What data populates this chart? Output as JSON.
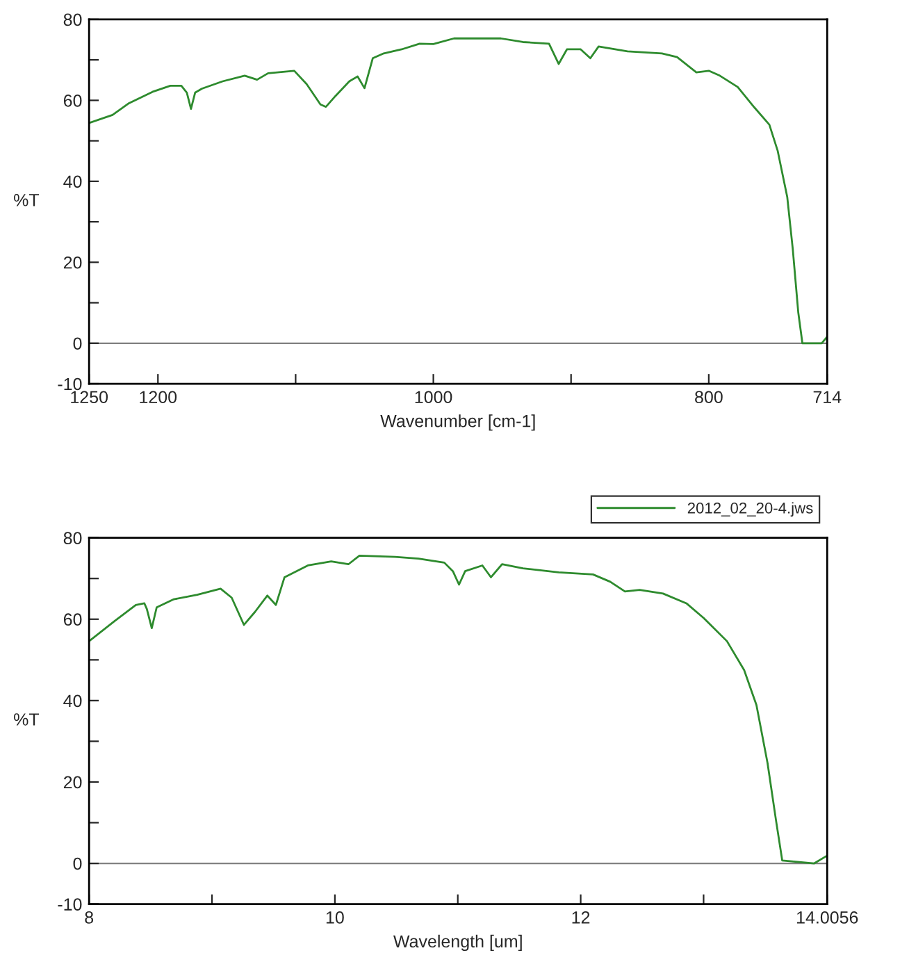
{
  "chart_data": [
    {
      "type": "line",
      "xlabel": "Wavenumber [cm-1]",
      "ylabel": "%T",
      "xlim": [
        1250,
        714
      ],
      "ylim": [
        -10,
        80
      ],
      "xticks": [
        1250,
        1200,
        {
          "value": 1100,
          "label": null
        },
        1000,
        {
          "value": 900,
          "label": null
        },
        800,
        714
      ],
      "yticks": [
        -10,
        0,
        {
          "value": 10,
          "label": null
        },
        20,
        {
          "value": 30,
          "label": null
        },
        40,
        {
          "value": 50,
          "label": null
        },
        60,
        {
          "value": 70,
          "label": null
        },
        80
      ],
      "grid": false,
      "legend": false,
      "ref_lines": [
        {
          "axis": "y",
          "value": 0,
          "color": "#808080"
        }
      ],
      "series": [
        {
          "color": "#2e8b2e",
          "x": [
            1250,
            1233,
            1221,
            1204,
            1191,
            1183,
            1179,
            1176,
            1173,
            1168,
            1153,
            1137,
            1128,
            1120,
            1101,
            1092,
            1082,
            1078,
            1071,
            1061,
            1055,
            1050,
            1044,
            1036,
            1023,
            1010,
            1000,
            985,
            968,
            951,
            935,
            916,
            909,
            903,
            893,
            886,
            880,
            859,
            834,
            823,
            809,
            800,
            792,
            779,
            767,
            756,
            750,
            743,
            739,
            735,
            732,
            718,
            714
          ],
          "values": [
            54.4,
            56.4,
            59.3,
            62.1,
            63.6,
            63.6,
            61.9,
            57.9,
            61.9,
            62.9,
            64.7,
            66.1,
            65.1,
            66.7,
            67.3,
            64,
            59,
            58.4,
            61.1,
            64.7,
            65.9,
            63,
            70.4,
            71.6,
            72.6,
            74,
            73.9,
            75.3,
            75.3,
            75.3,
            74.4,
            74,
            69,
            72.6,
            72.6,
            70.4,
            73.3,
            72.1,
            71.6,
            70.7,
            66.9,
            67.3,
            66.1,
            63.3,
            58.3,
            54,
            47.6,
            36.1,
            23.3,
            7.6,
            0,
            0,
            1.6
          ]
        }
      ]
    },
    {
      "type": "line",
      "xlabel": "Wavelength [um]",
      "ylabel": "%T",
      "xlim": [
        8,
        14.0056
      ],
      "ylim": [
        -10,
        80
      ],
      "xticks": [
        8,
        {
          "value": 9,
          "label": null
        },
        10,
        {
          "value": 11,
          "label": null
        },
        12,
        {
          "value": 13,
          "label": null
        },
        14.0056
      ],
      "yticks": [
        -10,
        0,
        {
          "value": 10,
          "label": null
        },
        20,
        {
          "value": 30,
          "label": null
        },
        40,
        {
          "value": 50,
          "label": null
        },
        60,
        {
          "value": 70,
          "label": null
        },
        80
      ],
      "grid": false,
      "legend": "top right",
      "ref_lines": [
        {
          "axis": "y",
          "value": 0,
          "color": "#808080"
        }
      ],
      "series": [
        {
          "name": "2012_02_20-4.jws",
          "color": "#2e8b2e",
          "x": [
            8,
            8.21,
            8.38,
            8.45,
            8.47,
            8.51,
            8.55,
            8.69,
            8.88,
            9.07,
            9.16,
            9.26,
            9.35,
            9.45,
            9.52,
            9.59,
            9.78,
            9.97,
            10.11,
            10.2,
            10.49,
            10.68,
            10.89,
            10.96,
            11.01,
            11.06,
            11.2,
            11.27,
            11.36,
            11.53,
            11.82,
            12.1,
            12.24,
            12.36,
            12.48,
            12.67,
            12.86,
            13,
            13.19,
            13.33,
            13.43,
            13.52,
            13.59,
            13.64,
            13.9,
            14.0056
          ],
          "values": [
            54.6,
            59.6,
            63.5,
            63.9,
            62.5,
            57.8,
            62.9,
            64.9,
            66,
            67.5,
            65.3,
            58.6,
            61.8,
            65.8,
            63.5,
            70.3,
            73.2,
            74.2,
            73.5,
            75.6,
            75.3,
            74.9,
            73.9,
            71.8,
            68.5,
            71.8,
            73.2,
            70.3,
            73.5,
            72.5,
            71.5,
            71,
            69.2,
            66.8,
            67.2,
            66.3,
            63.9,
            60.3,
            54.6,
            47.5,
            38.9,
            24.7,
            10.4,
            0.7,
            0,
            1.9
          ]
        }
      ]
    }
  ]
}
